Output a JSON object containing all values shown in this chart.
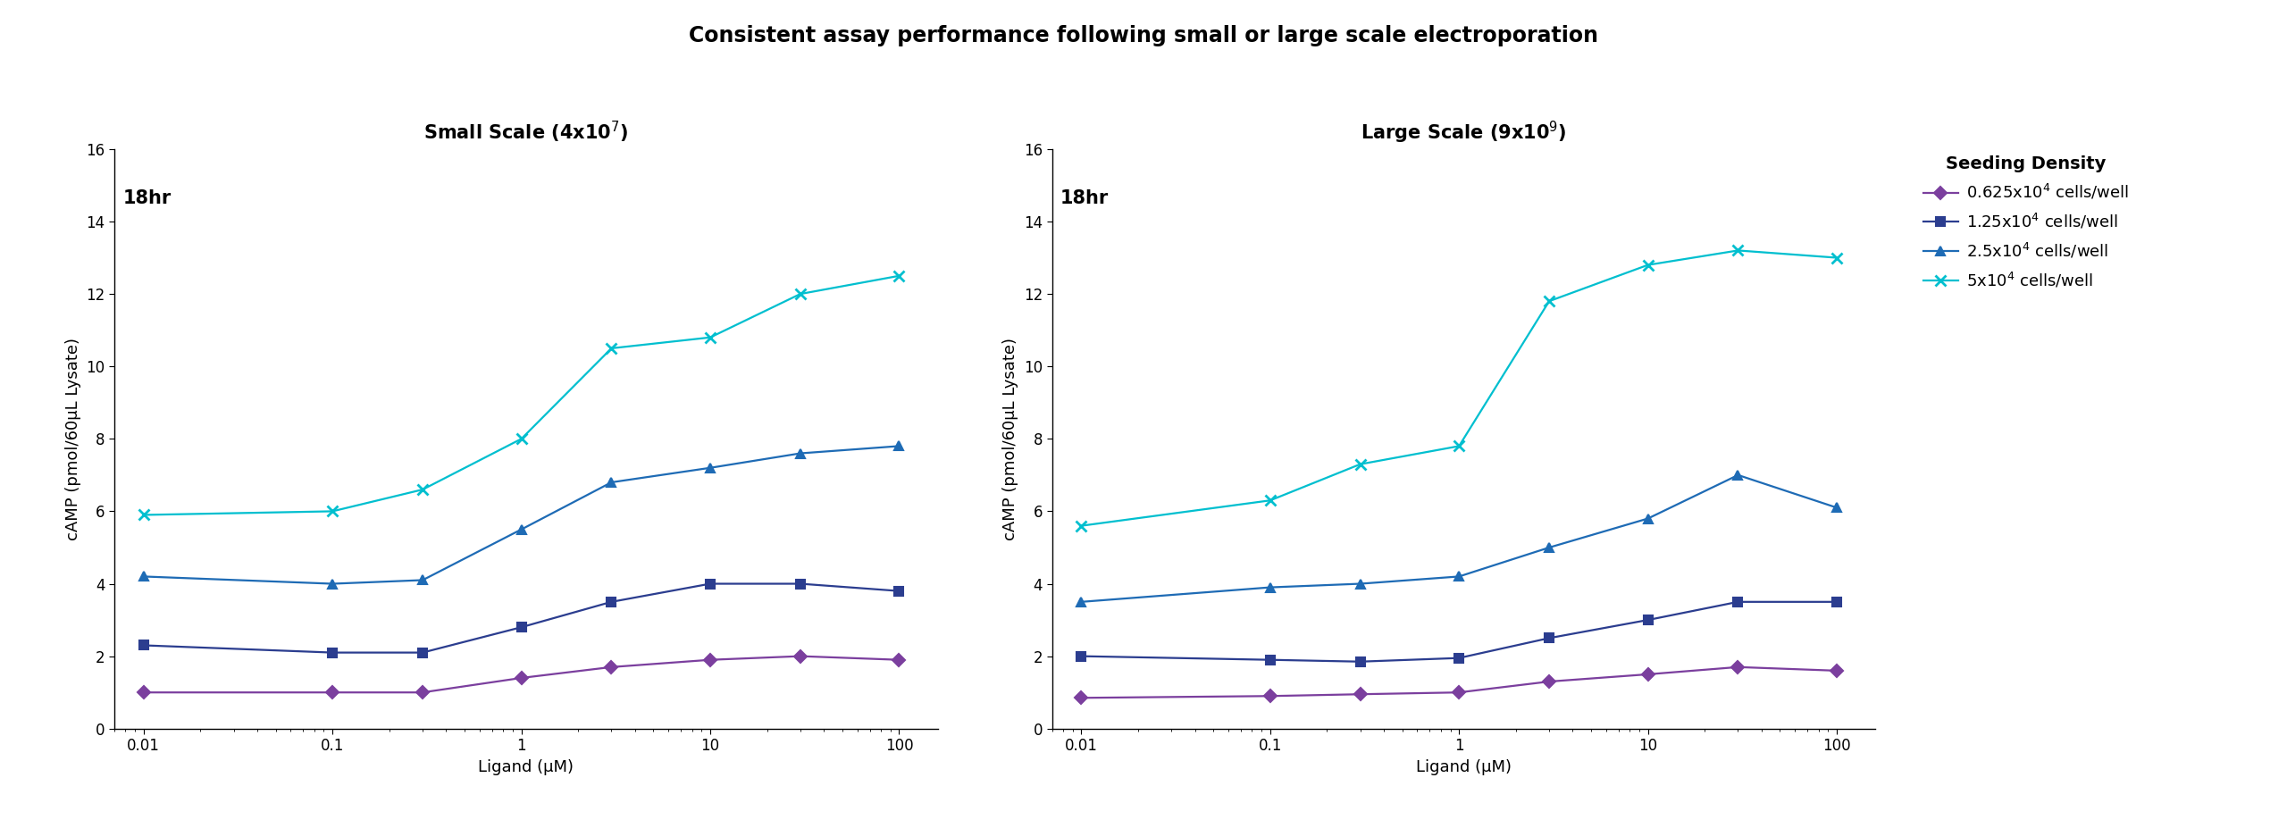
{
  "title": "Consistent assay performance following small or large scale electroporation",
  "subplot1_title": "Small Scale (4x10$^7$)",
  "subplot2_title": "Large Scale (9x10$^9$)",
  "time_label": "18hr",
  "ylabel": "cAMP (pmol/60μL Lysate)",
  "xlabel": "Ligand (μM)",
  "xvalues": [
    0.01,
    0.1,
    0.3,
    1,
    3,
    10,
    30,
    100
  ],
  "legend_title": "Seeding Density",
  "legend_labels": [
    "0.625x10$^4$ cells/well",
    "1.25x10$^4$ cells/well",
    "2.5x10$^4$ cells/well",
    "5x10$^4$ cells/well"
  ],
  "colors": [
    "#7B3F9E",
    "#2B3D8F",
    "#1E6BB5",
    "#00BFCF"
  ],
  "markers": [
    "D",
    "s",
    "^",
    "x"
  ],
  "small_scale": [
    [
      1.0,
      1.0,
      1.0,
      1.4,
      1.7,
      1.9,
      2.0,
      1.9
    ],
    [
      2.3,
      2.1,
      2.1,
      2.8,
      3.5,
      4.0,
      4.0,
      3.8
    ],
    [
      4.2,
      4.0,
      4.1,
      5.5,
      6.8,
      7.2,
      7.6,
      7.8
    ],
    [
      5.9,
      6.0,
      6.6,
      8.0,
      10.5,
      10.8,
      12.0,
      12.5
    ]
  ],
  "large_scale": [
    [
      0.85,
      0.9,
      0.95,
      1.0,
      1.3,
      1.5,
      1.7,
      1.6
    ],
    [
      2.0,
      1.9,
      1.85,
      1.95,
      2.5,
      3.0,
      3.5,
      3.5
    ],
    [
      3.5,
      3.9,
      4.0,
      4.2,
      5.0,
      5.8,
      7.0,
      6.1
    ],
    [
      5.6,
      6.3,
      7.3,
      7.8,
      11.8,
      12.8,
      13.2,
      13.0
    ]
  ],
  "ylim": [
    0,
    16
  ],
  "yticks": [
    0,
    2,
    4,
    6,
    8,
    10,
    12,
    14,
    16
  ],
  "xtick_vals": [
    0.01,
    0.1,
    1,
    10,
    100
  ],
  "xtick_labels": [
    "0.01",
    "0.1",
    "1",
    "10",
    "100"
  ],
  "background_color": "#ffffff",
  "title_fontsize": 17,
  "subtitle_fontsize": 15,
  "label_fontsize": 13,
  "tick_fontsize": 12,
  "legend_fontsize": 13,
  "legend_title_fontsize": 14,
  "linewidth": 1.6,
  "markersize": 7,
  "x_markersize": 9,
  "time_fontsize": 15
}
